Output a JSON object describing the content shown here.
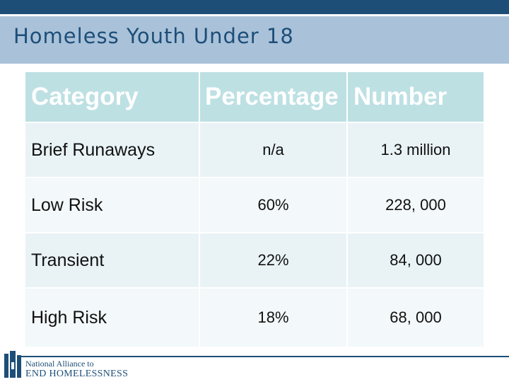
{
  "slide": {
    "title": "Homeless Youth Under 18"
  },
  "table": {
    "headers": [
      "Category",
      "Percentage",
      "Number"
    ],
    "rows": [
      {
        "category": "Brief Runaways",
        "percentage": "n/a",
        "number": "1.3 million"
      },
      {
        "category": "Low Risk",
        "percentage": "60%",
        "number": "228, 000"
      },
      {
        "category": "Transient",
        "percentage": "22%",
        "number": "84, 000"
      },
      {
        "category": "High Risk",
        "percentage": "18%",
        "number": "68, 000"
      }
    ]
  },
  "logo": {
    "line1": "National Alliance to",
    "line2": "END HOMELESSNESS"
  },
  "colors": {
    "brand_dark_blue": "#1d4e78",
    "title_band": "#a9c2d9",
    "header_cell": "#bde0e3",
    "body_cell": "#e9f3f6"
  }
}
